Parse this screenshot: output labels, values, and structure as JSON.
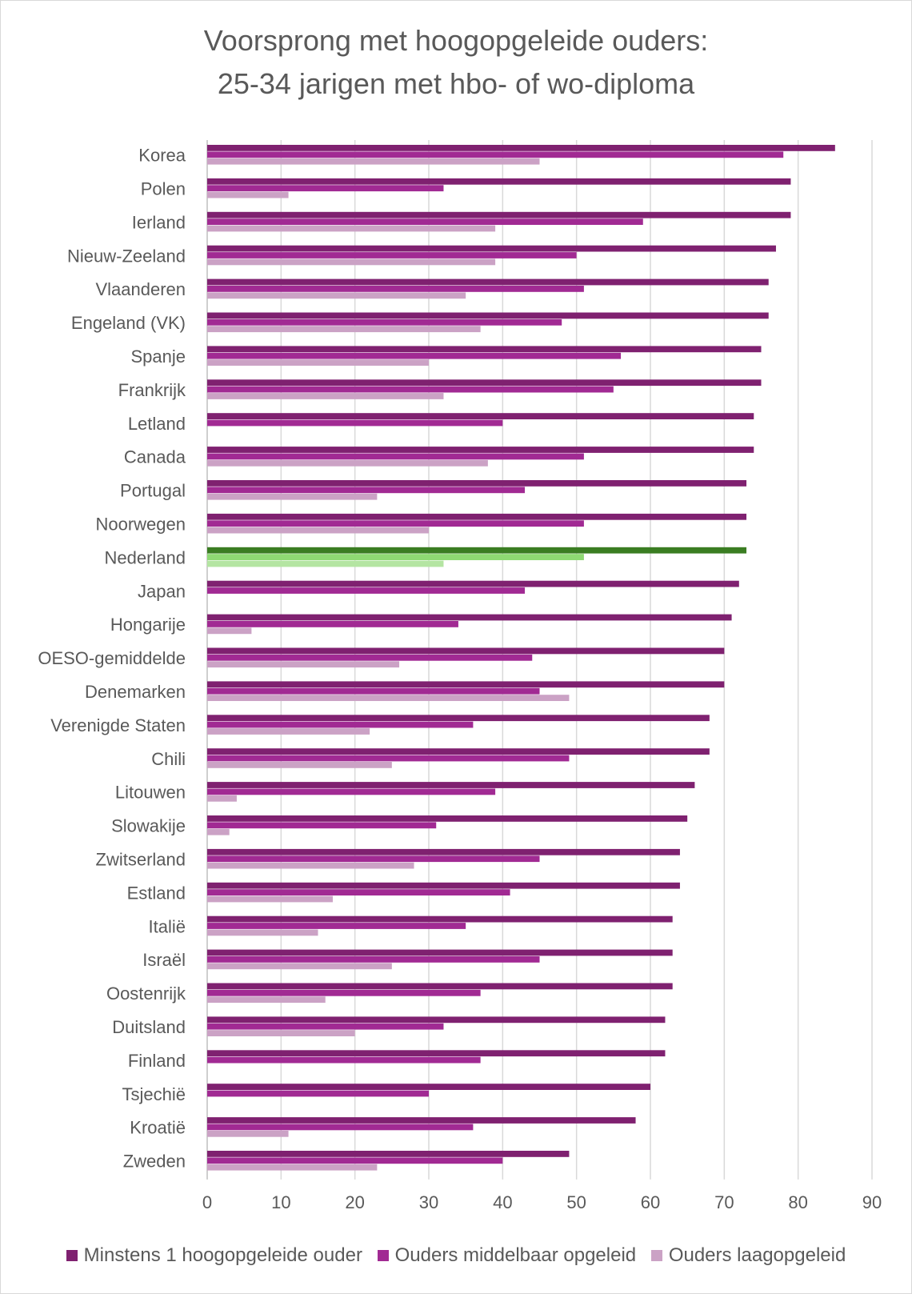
{
  "chart_data": {
    "type": "bar",
    "orientation": "horizontal",
    "title_lines": [
      "Voorsprong met hoogopgeleide ouders:",
      "25-34 jarigen met hbo- of wo-diploma"
    ],
    "xlabel": "",
    "ylabel": "",
    "xlim": [
      0,
      90
    ],
    "x_ticks": [
      "0",
      "10",
      "20",
      "30",
      "40",
      "50",
      "60",
      "70",
      "80",
      "90"
    ],
    "grid": true,
    "legend_position": "bottom",
    "categories": [
      "Korea",
      "Polen",
      "Ierland",
      "Nieuw-Zeeland",
      "Vlaanderen",
      "Engeland (VK)",
      "Spanje",
      "Frankrijk",
      "Letland",
      "Canada",
      "Portugal",
      "Noorwegen",
      "Nederland",
      "Japan",
      "Hongarije",
      "OESO-gemiddelde",
      "Denemarken",
      "Verenigde Staten",
      "Chili",
      "Litouwen",
      "Slowakije",
      "Zwitserland",
      "Estland",
      "Italië",
      "Israël",
      "Oostenrijk",
      "Duitsland",
      "Finland",
      "Tsjechië",
      "Kroatië",
      "Zweden"
    ],
    "highlight_category": "Nederland",
    "series": [
      {
        "name": "Minstens 1 hoogopgeleide ouder",
        "color": "#7f2170",
        "highlight_color": "#3a7d22",
        "values": [
          85,
          79,
          79,
          77,
          76,
          76,
          75,
          75,
          74,
          74,
          73,
          73,
          73,
          72,
          71,
          70,
          70,
          68,
          68,
          66,
          65,
          64,
          64,
          63,
          63,
          63,
          62,
          62,
          60,
          58,
          49
        ]
      },
      {
        "name": "Ouders middelbaar opgeleid",
        "color": "#a12a93",
        "highlight_color": "#8ed973",
        "values": [
          78,
          32,
          59,
          50,
          51,
          48,
          56,
          55,
          40,
          51,
          43,
          51,
          51,
          43,
          34,
          44,
          45,
          36,
          49,
          39,
          31,
          45,
          41,
          35,
          45,
          37,
          32,
          37,
          30,
          36,
          40
        ]
      },
      {
        "name": "Ouders laagopgeleid",
        "color": "#cba2c5",
        "highlight_color": "#b4e5a2",
        "values": [
          45,
          11,
          39,
          39,
          35,
          37,
          30,
          32,
          null,
          38,
          23,
          30,
          32,
          null,
          6,
          26,
          49,
          22,
          25,
          4,
          3,
          28,
          17,
          15,
          25,
          16,
          20,
          null,
          null,
          11,
          23
        ]
      }
    ]
  }
}
